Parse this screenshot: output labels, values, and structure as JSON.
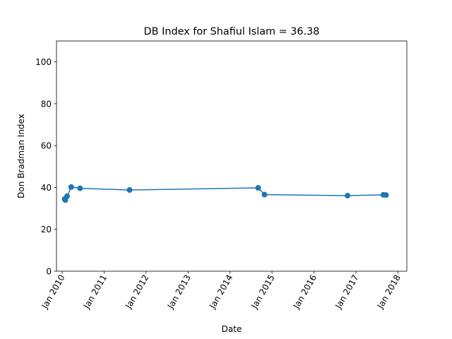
{
  "chart_data": {
    "type": "line",
    "title": "DB Index for Shafiul Islam = 36.38",
    "xlabel": "Date",
    "ylabel": "Don Bradman Index",
    "x_scale": "date",
    "xlim": [
      "2009-11-12",
      "2018-03-20"
    ],
    "ylim": [
      0,
      110
    ],
    "x_ticks": [
      {
        "date": "2010-01-01",
        "label": "Jan 2010"
      },
      {
        "date": "2011-01-01",
        "label": "Jan 2011"
      },
      {
        "date": "2012-01-01",
        "label": "Jan 2012"
      },
      {
        "date": "2013-01-01",
        "label": "Jan 2013"
      },
      {
        "date": "2014-01-01",
        "label": "Jan 2014"
      },
      {
        "date": "2015-01-01",
        "label": "Jan 2015"
      },
      {
        "date": "2016-01-01",
        "label": "Jan 2016"
      },
      {
        "date": "2017-01-01",
        "label": "Jan 2017"
      },
      {
        "date": "2018-01-01",
        "label": "Jan 2018"
      }
    ],
    "y_ticks": [
      0,
      20,
      40,
      60,
      80,
      100
    ],
    "grid": false,
    "series": [
      {
        "color": "#1f77b4",
        "marker": "circle",
        "points": [
          {
            "x": "2010-01-22",
            "y": 34.5
          },
          {
            "x": "2010-01-28",
            "y": 34.0
          },
          {
            "x": "2010-02-12",
            "y": 35.8
          },
          {
            "x": "2010-03-20",
            "y": 40.2
          },
          {
            "x": "2010-06-05",
            "y": 39.6
          },
          {
            "x": "2011-08-10",
            "y": 38.8
          },
          {
            "x": "2014-09-03",
            "y": 39.8
          },
          {
            "x": "2014-10-28",
            "y": 36.6
          },
          {
            "x": "2016-10-20",
            "y": 36.1
          },
          {
            "x": "2017-08-28",
            "y": 36.5
          },
          {
            "x": "2017-09-20",
            "y": 36.38
          }
        ]
      }
    ]
  }
}
